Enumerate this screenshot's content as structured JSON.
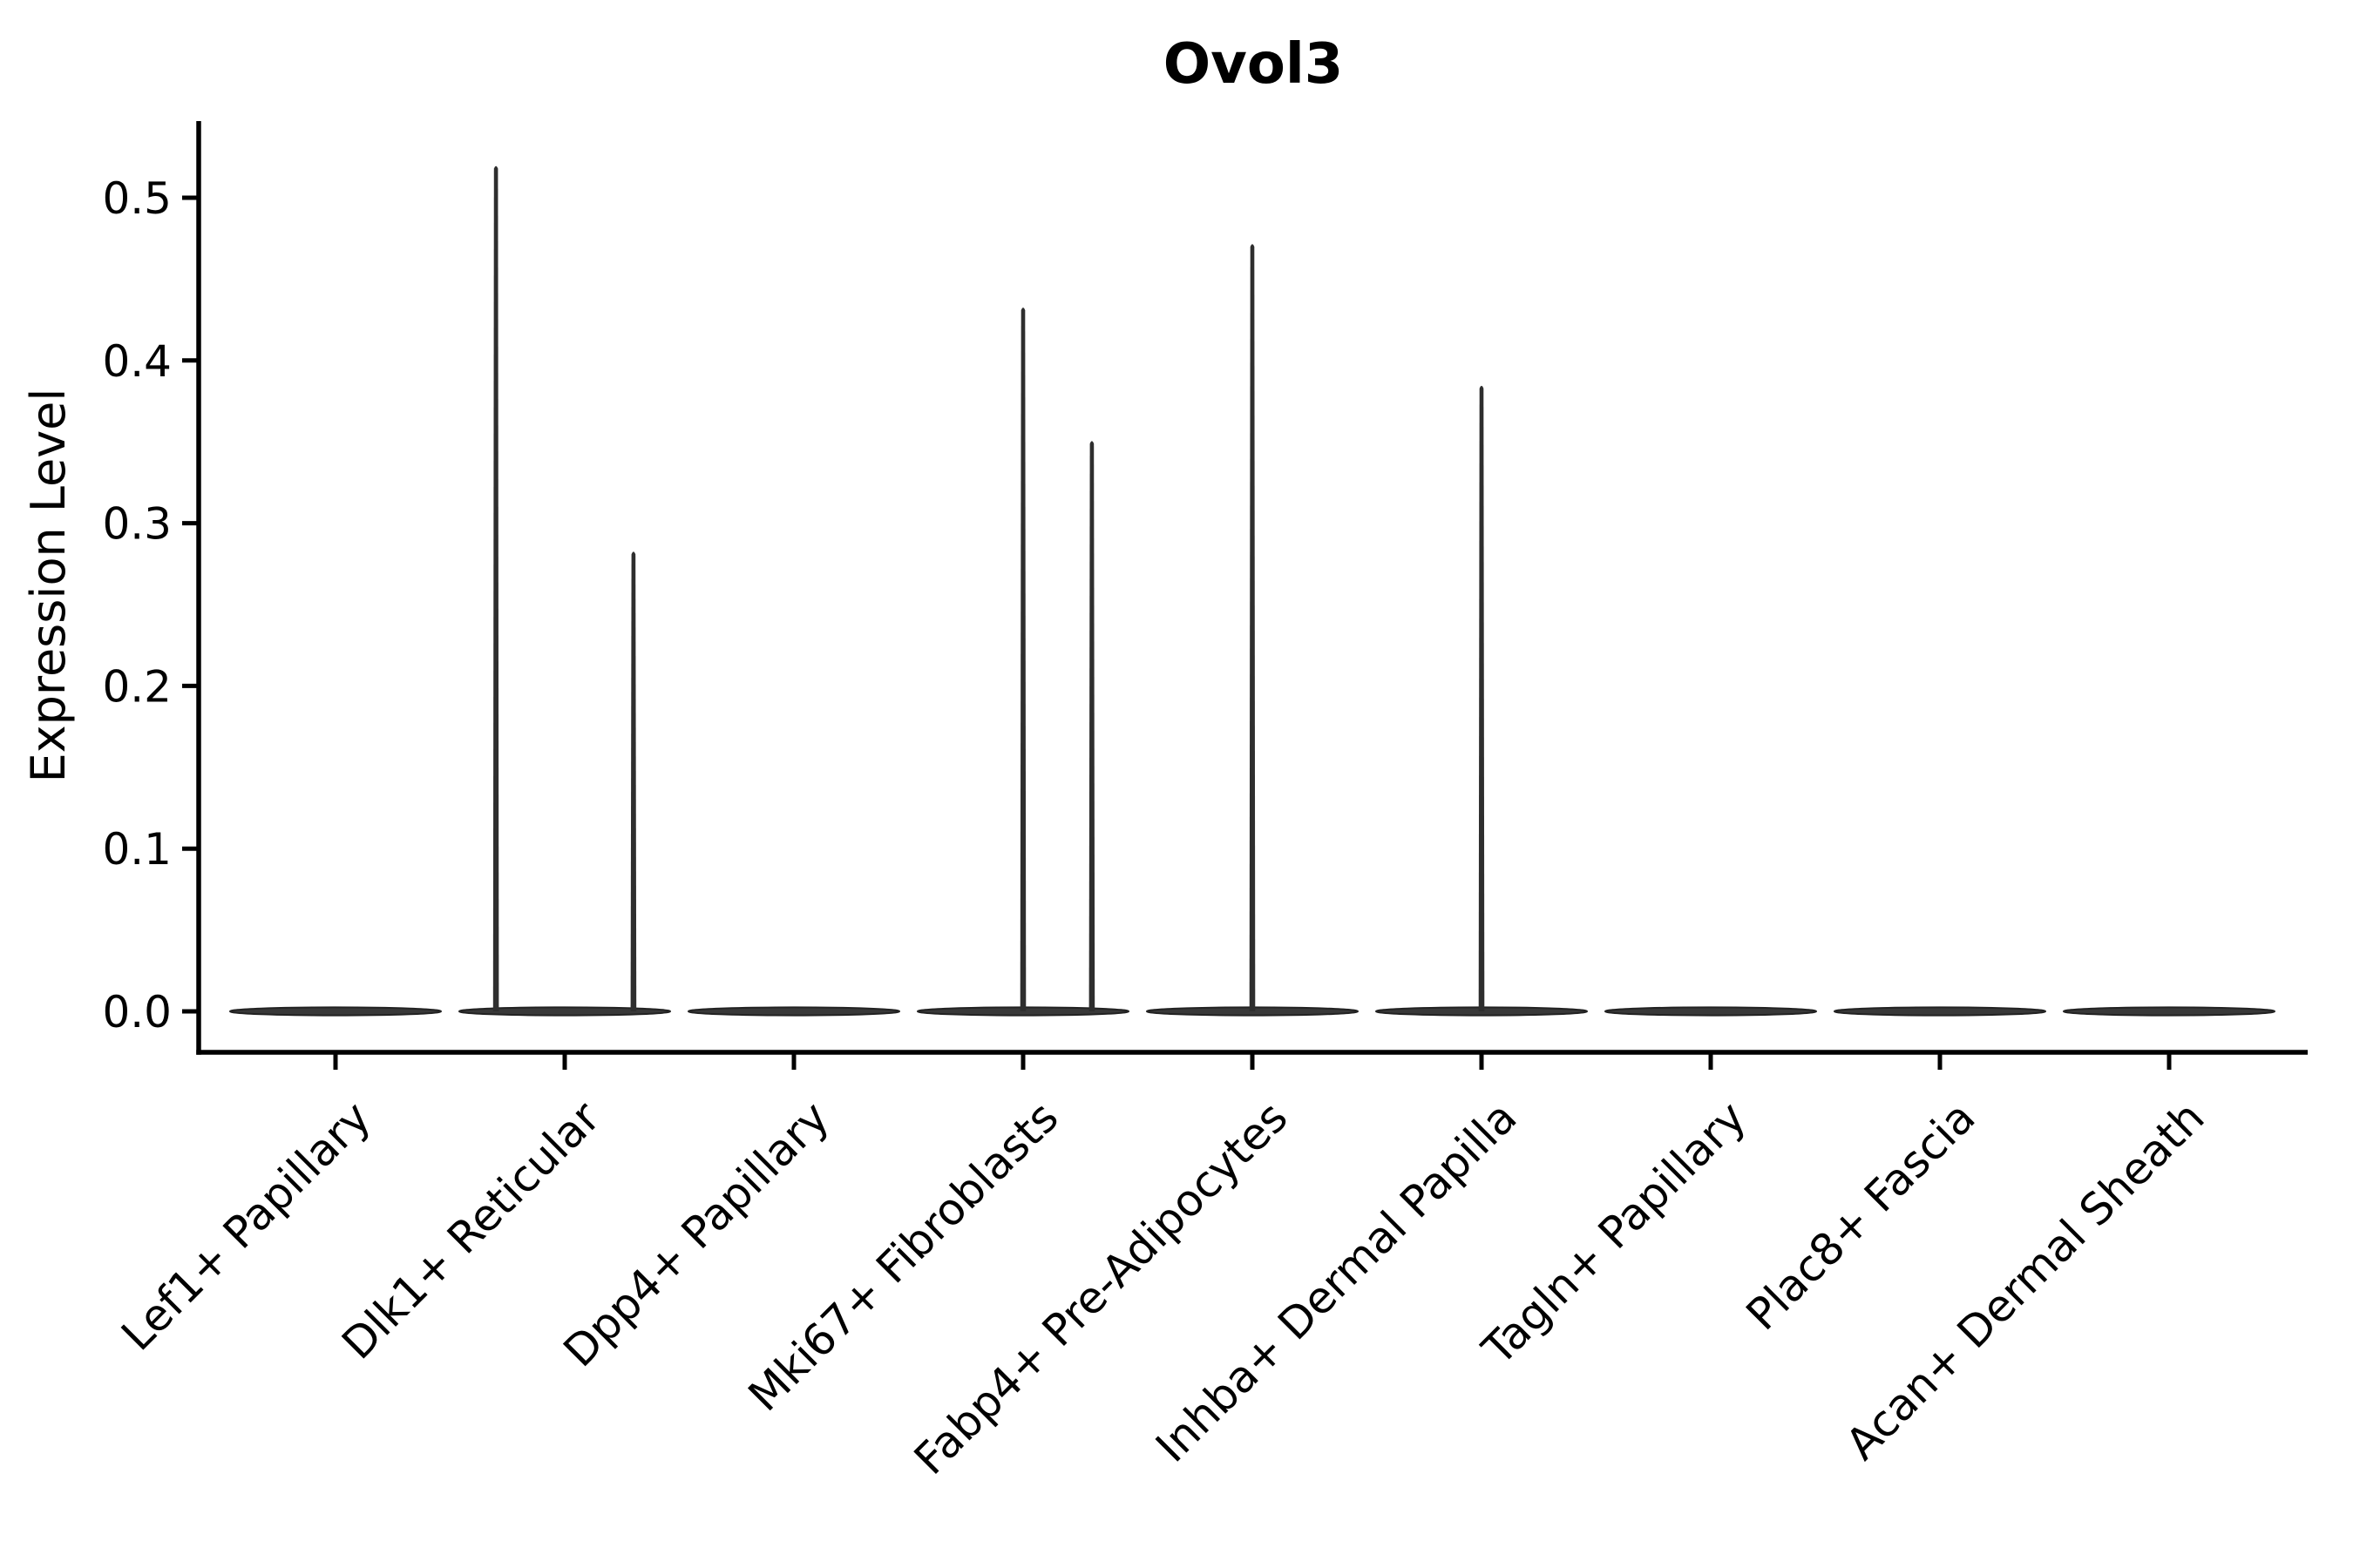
{
  "chart_data": {
    "type": "violin",
    "title": "Ovol3",
    "xlabel": "",
    "ylabel": "Expression Level",
    "ylim": [
      -0.025,
      0.547
    ],
    "yticks": [
      0.0,
      0.1,
      0.2,
      0.3,
      0.4,
      0.5
    ],
    "ytick_labels": [
      "0.0",
      "0.1",
      "0.2",
      "0.3",
      "0.4",
      "0.5"
    ],
    "grid": false,
    "legend": "none",
    "x_tick_rotation_deg": 45,
    "categories": [
      "Lef1+ Papillary",
      "Dlk1+ Reticular",
      "Dpp4+ Papillary",
      "Mki67+ Fibroblasts",
      "Fabp4+ Pre-Adipocytes",
      "Inhba+ Dermal Papilla",
      "Tagln+ Papillary",
      "Plac8+ Fascia",
      "Acan+ Dermal Sheath"
    ],
    "violins": [
      {
        "category": "Lef1+ Papillary",
        "baseline_value": 0.0,
        "max_expression": 0.0,
        "spikes": []
      },
      {
        "category": "Dlk1+ Reticular",
        "baseline_value": 0.0,
        "max_expression": 0.52,
        "spikes": [
          {
            "x_offset": -0.3,
            "value": 0.52
          },
          {
            "x_offset": 0.3,
            "value": 0.283
          }
        ]
      },
      {
        "category": "Dpp4+ Papillary",
        "baseline_value": 0.0,
        "max_expression": 0.0,
        "spikes": []
      },
      {
        "category": "Mki67+ Fibroblasts",
        "baseline_value": 0.0,
        "max_expression": 0.433,
        "spikes": [
          {
            "x_offset": 0.0,
            "value": 0.433
          },
          {
            "x_offset": 0.3,
            "value": 0.351
          }
        ]
      },
      {
        "category": "Fabp4+ Pre-Adipocytes",
        "baseline_value": 0.0,
        "max_expression": 0.472,
        "spikes": [
          {
            "x_offset": 0.0,
            "value": 0.472
          }
        ]
      },
      {
        "category": "Inhba+ Dermal Papilla",
        "baseline_value": 0.0,
        "max_expression": 0.385,
        "spikes": [
          {
            "x_offset": 0.0,
            "value": 0.385
          }
        ]
      },
      {
        "category": "Tagln+ Papillary",
        "baseline_value": 0.0,
        "max_expression": 0.0,
        "spikes": []
      },
      {
        "category": "Plac8+ Fascia",
        "baseline_value": 0.0,
        "max_expression": 0.0,
        "spikes": []
      },
      {
        "category": "Acan+ Dermal Sheath",
        "baseline_value": 0.0,
        "max_expression": 0.0,
        "spikes": []
      }
    ],
    "colors": {
      "violin_fill": "#383838",
      "violin_edge": "#222222",
      "spike": "#2e2e2e",
      "axis": "#000000",
      "text": "#000000",
      "background": "#ffffff"
    }
  }
}
